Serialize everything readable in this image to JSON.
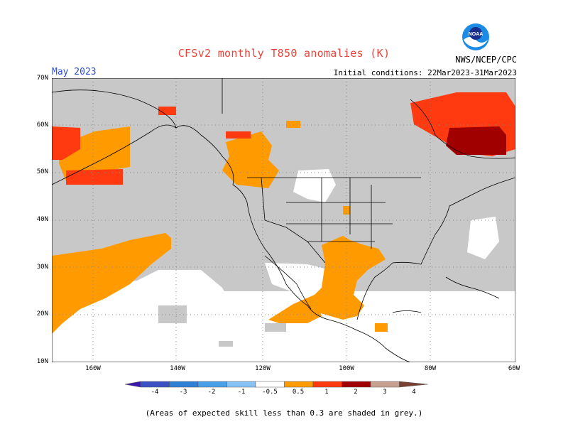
{
  "title": "CFSv2 monthly T850 anomalies (K)",
  "agency": "NWS/NCEP/CPC",
  "logo_text": "NOAA",
  "month": "May 2023",
  "initial_conditions": "Initial conditions: 22Mar2023-31Mar2023",
  "lat_labels": [
    "70N",
    "60N",
    "50N",
    "40N",
    "30N",
    "20N",
    "10N"
  ],
  "lon_labels": [
    "160W",
    "140W",
    "120W",
    "100W",
    "80W",
    "60W"
  ],
  "colorbar": {
    "ticks": [
      "-4",
      "-3",
      "-2",
      "-1",
      "-0.5",
      "0.5",
      "1",
      "2",
      "3",
      "4"
    ],
    "colors": [
      "#3a1aa8",
      "#3c52c4",
      "#2e7fd6",
      "#4aa0e8",
      "#86c3f4",
      "#ffffff",
      "#ff9a00",
      "#ff3a10",
      "#a00000",
      "#c8a090",
      "#7a4030"
    ]
  },
  "footnote": "(Areas of expected skill less than 0.3 are shaded in grey.)",
  "legend_colors": {
    "skill_grey": "#c8c8c8",
    "anom_0_5_1": "#ff9a00",
    "anom_1_2": "#ff3a10",
    "anom_2_3": "#a00000"
  }
}
